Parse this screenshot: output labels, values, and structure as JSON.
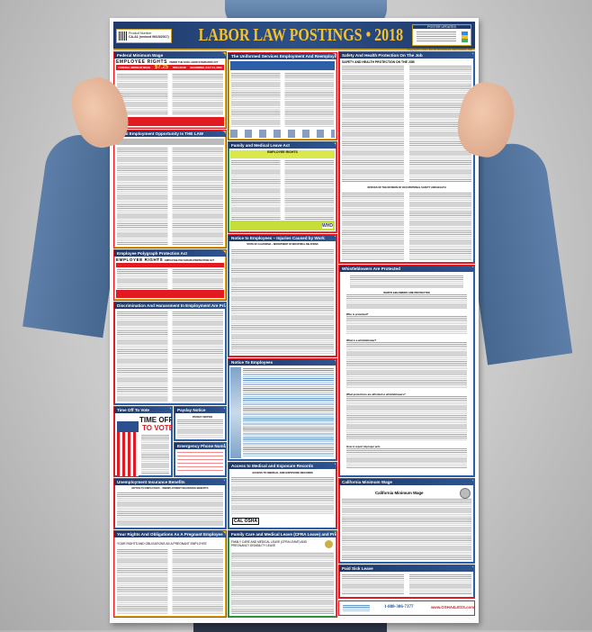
{
  "poster": {
    "title": "LABOR LAW POSTINGS • 2018",
    "product_label": "Product Number",
    "product_code": "CA-A1 (revised 06/15/2017)",
    "updates_label": "POSTER UPDATES",
    "copyright": "Copyright © 2017 ELITE BUSINESS VENTURES, INC."
  },
  "sections": {
    "federal_min_wage": {
      "title": "Federal Minimum Wage",
      "banner": "EMPLOYEE RIGHTS",
      "banner_sub": "UNDER THE FAIR LABOR STANDARDS ACT",
      "wage_label": "FEDERAL MINIMUM WAGE",
      "wage": "$7.25",
      "per": "PER HOUR",
      "effective": "BEGINNING JULY 24, 2009"
    },
    "eeo": {
      "title": "Equal Employment Opportunity Is THE LAW"
    },
    "polygraph": {
      "title": "Employee Polygraph Protection Act",
      "banner": "EMPLOYEE RIGHTS",
      "banner_sub": "EMPLOYEE POLYGRAPH PROTECTION ACT"
    },
    "discrimination": {
      "title": "Discrimination And Harassment In Employment Are Prohibited By Law"
    },
    "time_off_vote": {
      "title": "Time Off To Vote",
      "headline_1": "TIME OFF",
      "headline_2": "TO VOTE"
    },
    "payday": {
      "title": "Payday Notice",
      "sub": "PAYDAY NOTICE"
    },
    "emergency": {
      "title": "Emergency Phone Numbers"
    },
    "unemployment": {
      "title": "Unemployment Insurance Benefits",
      "sub": "NOTICE TO EMPLOYEES · UNEMPLOYMENT INSURANCE BENEFITS"
    },
    "pregnant": {
      "title": "Your Rights And Obligations As A Pregnant Employee",
      "headline": "YOUR RIGHTS AND OBLIGATIONS AS A PREGNANT EMPLOYEE"
    },
    "uniformed": {
      "title": "The Uniformed Services Employment And Reemployment Rights Act"
    },
    "fmla": {
      "title": "Family and Medical Leave Act",
      "banner": "EMPLOYEE RIGHTS",
      "badge": "WHD"
    },
    "injuries": {
      "title": "Notice to Employees – Injuries Caused by Work",
      "sub": "STATE OF CALIFORNIA – DEPARTMENT OF INDUSTRIAL RELATIONS"
    },
    "notice_employees": {
      "title": "Notice To Employees"
    },
    "medical_records": {
      "title": "Access to Medical and Exposure Records",
      "sub": "ACCESS TO MEDICAL AND EXPOSURE RECORDS",
      "logo": "CAL OSHA"
    },
    "family_care": {
      "title": "Family Care and Medical Leave (CFRA Leave) and Pregnancy Disability Leave",
      "headline": "FAMILY CARE AND MEDICAL LEAVE (CFRA LEAVE) AND PREGNANCY DISABILITY LEAVE"
    },
    "safety": {
      "title": "Safety And Health Protection On The Job",
      "headline": "SAFETY AND HEALTH PROTECTION ON THE JOB",
      "office": "OFFICES OF THE DIVISION OF OCCUPATIONAL SAFETY AND HEALTH"
    },
    "whistleblowers": {
      "title": "Whistleblowers Are Protected",
      "sub": "WHISTLEBLOWERS ARE PROTECTED",
      "q1": "Who is protected?",
      "q2": "What is a whistleblower?",
      "q3": "What protections are afforded to whistleblowers?",
      "q4": "How to report improper acts"
    },
    "ca_min_wage": {
      "title": "California Minimum Wage",
      "headline": "California Minimum Wage"
    },
    "paid_sick": {
      "title": "Paid Sick Leave"
    }
  },
  "footer": {
    "phone": "1-888-306-7377",
    "brand": "www.OSHA4LESS.com"
  },
  "colors": {
    "frame_red": "#e21b23",
    "header_navy": "#1f3a6b",
    "title_gold": "#f2c230"
  }
}
